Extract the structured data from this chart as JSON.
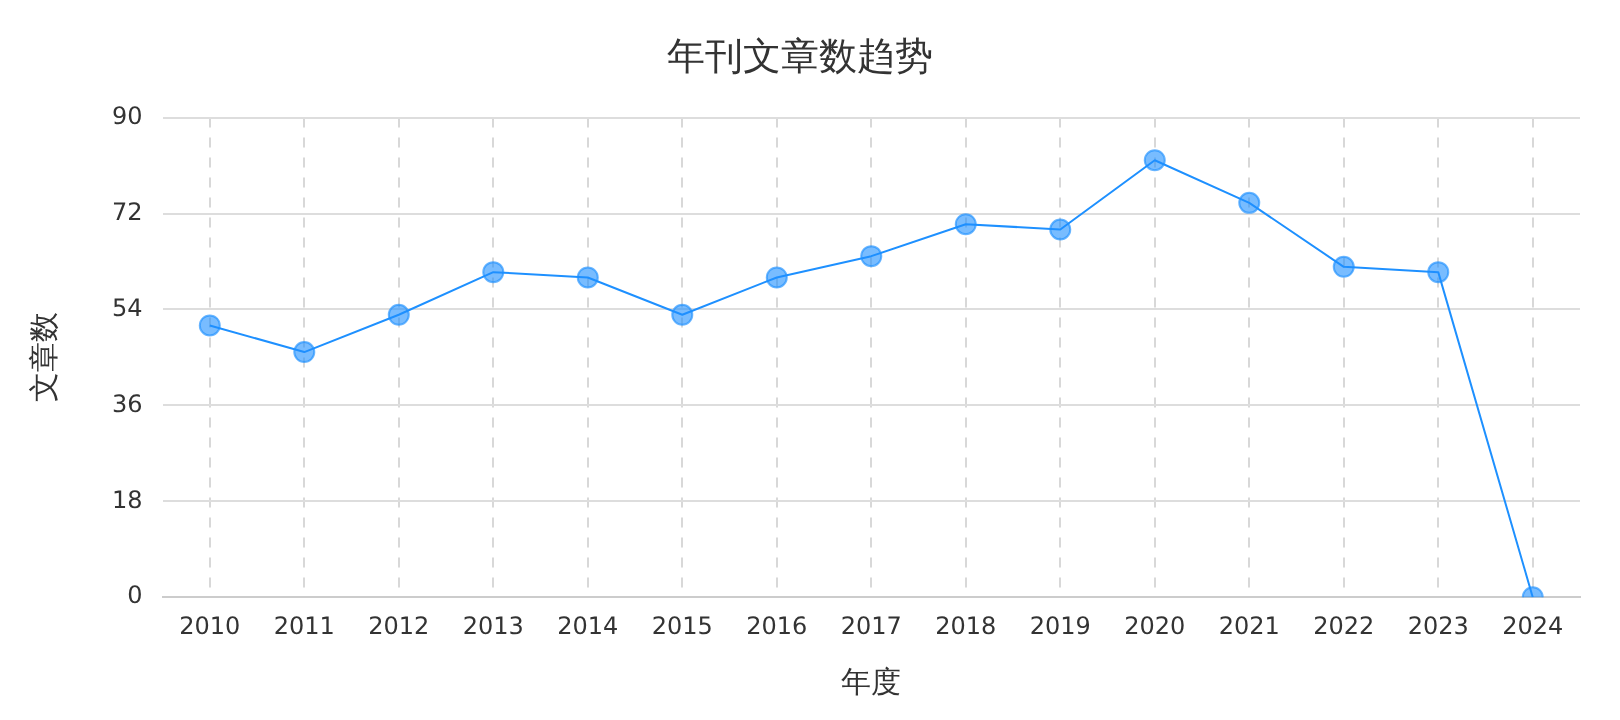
{
  "chart_data": {
    "type": "line",
    "title": "年刊文章数趋势",
    "xlabel": "年度",
    "ylabel": "文章数",
    "categories": [
      "2010",
      "2011",
      "2012",
      "2013",
      "2014",
      "2015",
      "2016",
      "2017",
      "2018",
      "2019",
      "2020",
      "2021",
      "2022",
      "2023",
      "2024"
    ],
    "series": [
      {
        "color": "#1e90ff",
        "values": [
          51,
          46,
          53,
          61,
          60,
          53,
          60,
          64,
          70,
          69,
          82,
          74,
          62,
          61,
          0
        ]
      }
    ],
    "ylim": [
      0,
      90
    ],
    "yticks": [
      0,
      18,
      36,
      54,
      72,
      90
    ],
    "grid": true,
    "legend": false,
    "marker": "circle",
    "line_style": "solid"
  }
}
